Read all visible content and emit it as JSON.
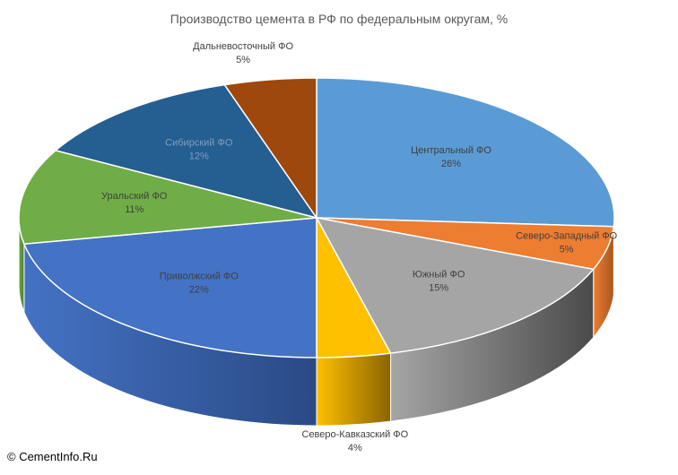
{
  "chart_data": {
    "type": "pie",
    "title": "Производство цемента в РФ по федеральным округам, %",
    "slices": [
      {
        "label": "Центральный ФО",
        "value": 26,
        "value_label": "26%",
        "color": "#5b9bd5",
        "side_color": "#3d6d99"
      },
      {
        "label": "Северо-Западный ФО",
        "value": 5,
        "value_label": "5%",
        "color": "#ed7d31",
        "side_color": "#a8571f"
      },
      {
        "label": "Южный ФО",
        "value": 15,
        "value_label": "15%",
        "color": "#a5a5a5",
        "side_color": "#4a4a4a"
      },
      {
        "label": "Северо-Кавказский ФО",
        "value": 4,
        "value_label": "4%",
        "color": "#ffc000",
        "side_color": "#8a6400"
      },
      {
        "label": "Приволжский ФО",
        "value": 22,
        "value_label": "22%",
        "color": "#4472c4",
        "side_color": "#2a4a85"
      },
      {
        "label": "Уральский ФО",
        "value": 11,
        "value_label": "11%",
        "color": "#70ad47",
        "side_color": "#4a7a2d"
      },
      {
        "label": "Сибирский ФО",
        "value": 12,
        "value_label": "12%",
        "color": "#255e91",
        "side_color": "#173d60"
      },
      {
        "label": "Дальневосточный ФО",
        "value": 5,
        "value_label": "5%",
        "color": "#9e480e",
        "side_color": "#6b2f08"
      }
    ],
    "labels_position": "on slices"
  },
  "copyright": "© CementInfo.Ru"
}
